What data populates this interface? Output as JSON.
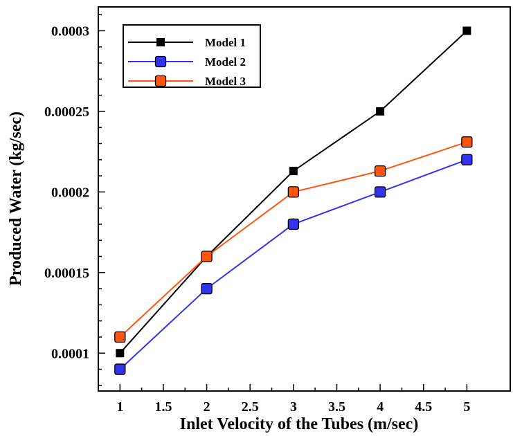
{
  "chart_data": {
    "type": "line",
    "title": "",
    "xlabel": "Inlet Velocity of the Tubes (m/sec)",
    "ylabel": "Produced Water (kg/sec)",
    "xlim": [
      0.75,
      5.5
    ],
    "ylim": [
      7.65e-05,
      0.0003148
    ],
    "x_ticks": [
      1,
      1.5,
      2,
      2.5,
      3,
      3.5,
      4,
      4.5,
      5
    ],
    "x_tick_labels": [
      "1",
      "1.5",
      "2",
      "2.5",
      "3",
      "3.5",
      "4",
      "4.5",
      "5"
    ],
    "y_ticks": [
      0.0001,
      0.00015,
      0.0002,
      0.00025,
      0.0003
    ],
    "y_tick_labels": [
      "0.0001",
      "0.00015",
      "0.0002",
      "0.00025",
      "0.0003"
    ],
    "grid": false,
    "legend_position": "top-left",
    "x": [
      1,
      2,
      3,
      4,
      5
    ],
    "series": [
      {
        "name": "Model 1",
        "color": "#000000",
        "marker": "small-square",
        "values": [
          0.0001,
          0.00016,
          0.000213,
          0.00025,
          0.0003
        ]
      },
      {
        "name": "Model 2",
        "color": "#3333ee",
        "marker": "square",
        "values": [
          9e-05,
          0.00014,
          0.00018,
          0.0002,
          0.00022
        ]
      },
      {
        "name": "Model 3",
        "color": "#ff5511",
        "marker": "square",
        "values": [
          0.00011,
          0.00016,
          0.0002,
          0.000213,
          0.000231
        ]
      }
    ]
  }
}
